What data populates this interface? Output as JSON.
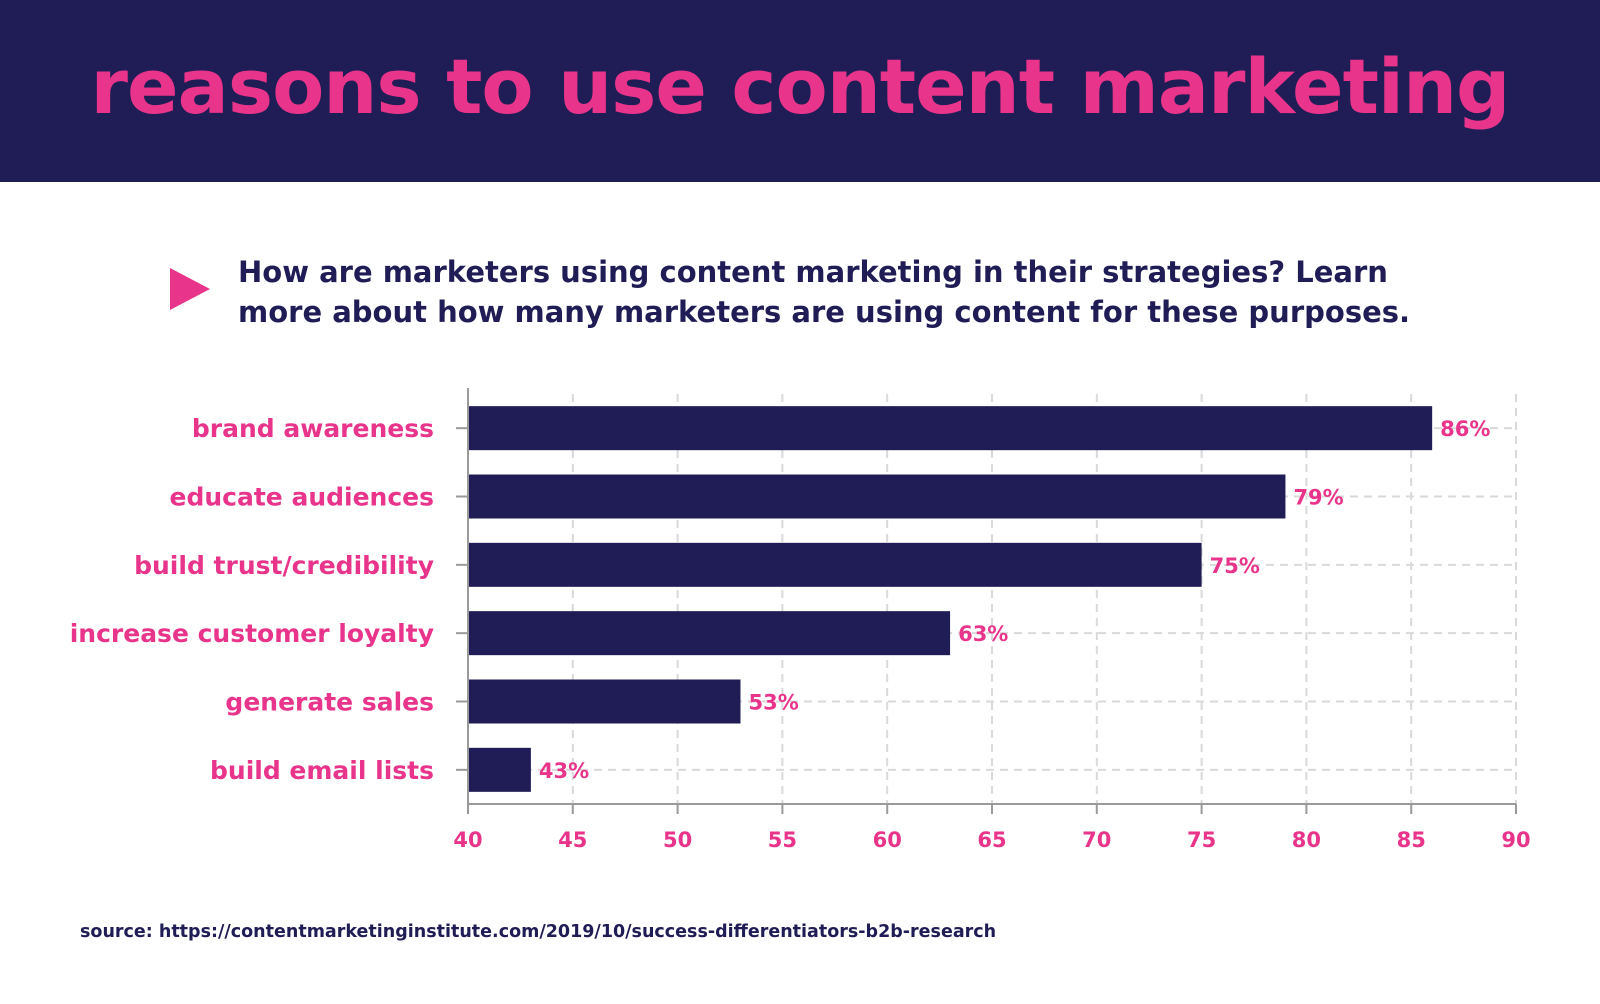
{
  "colors": {
    "navy": "#201c55",
    "pink": "#e8348a",
    "white": "#ffffff",
    "grid": "#d9d9d9",
    "axis": "#9a9a9a"
  },
  "banner": {
    "title": "reasons to use content marketing"
  },
  "intro": {
    "icon": "play-triangle-icon",
    "text": "How are marketers using content marketing in their strategies? Learn more about how many marketers are using content for these purposes."
  },
  "chart_data": {
    "type": "bar",
    "orientation": "horizontal",
    "categories": [
      "brand awareness",
      "educate audiences",
      "build trust/credibility",
      "increase customer loyalty",
      "generate sales",
      "build email lists"
    ],
    "values": [
      86,
      79,
      75,
      63,
      53,
      43
    ],
    "value_labels": [
      "86%",
      "79%",
      "75%",
      "63%",
      "53%",
      "43%"
    ],
    "xlim": [
      40,
      90
    ],
    "xticks": [
      40,
      45,
      50,
      55,
      60,
      65,
      70,
      75,
      80,
      85,
      90
    ],
    "grid": true,
    "grid_style": "dashed",
    "bar_color": "#201c55",
    "label_color": "#e8348a"
  },
  "footer": {
    "source": "source: https://contentmarketinginstitute.com/2019/10/success-differentiators-b2b-research"
  }
}
